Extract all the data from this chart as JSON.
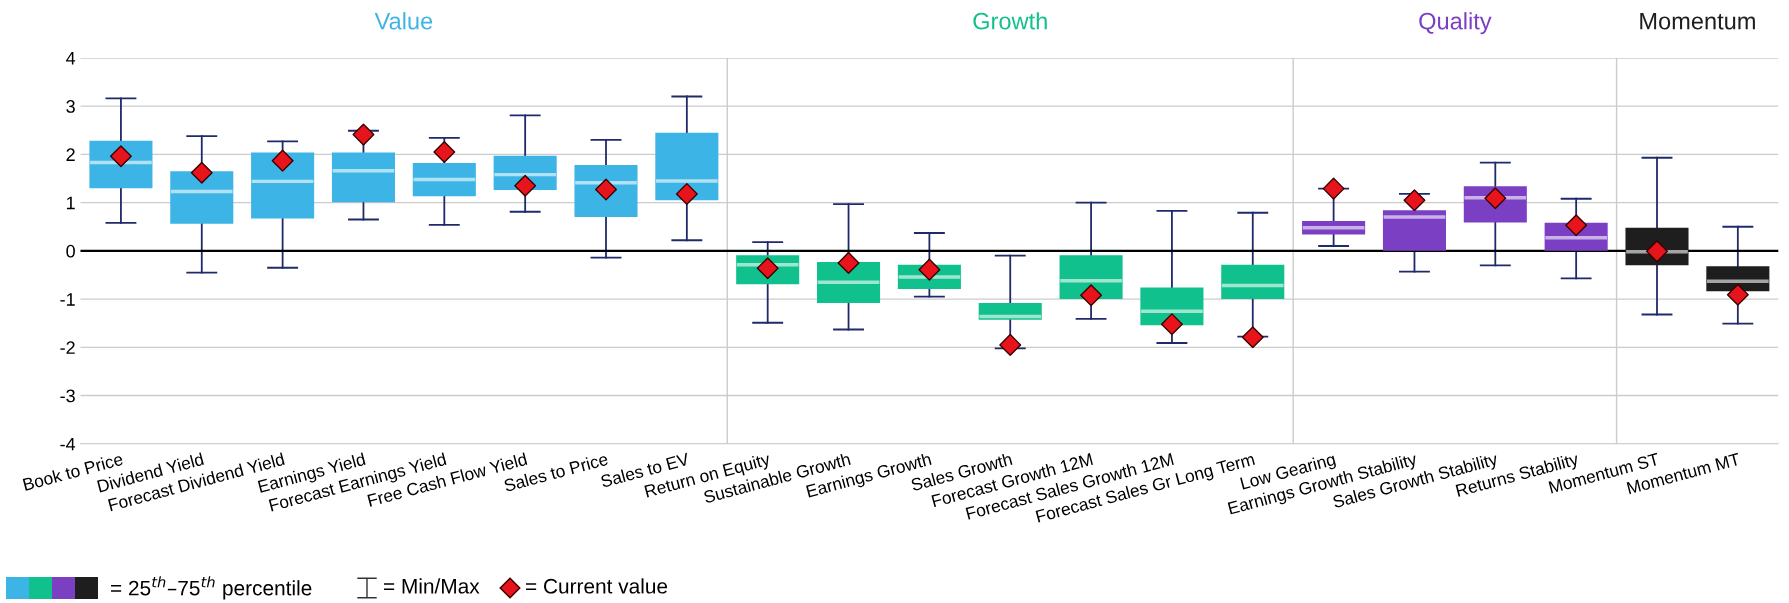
{
  "chart_data": {
    "type": "box",
    "categories": [
      "Book to Price",
      "Dividend Yield",
      "Forecast Dividend Yield",
      "Earnings Yield",
      "Forecast Earnings Yield",
      "Free Cash Flow Yield",
      "Sales to Price",
      "Sales to EV",
      "Return on Equity",
      "Sustainable Growth",
      "Earnings Growth",
      "Sales Growth",
      "Forecast Growth 12M",
      "Forecast Sales Growth 12M",
      "Forecast Sales Gr Long Term",
      "Low Gearing",
      "Earnings Growth Stability",
      "Sales Growth Stability",
      "Returns Stability",
      "Momentum ST",
      "Momentum MT"
    ],
    "series": [
      {
        "name": "Value",
        "color": "#3cb4e5",
        "boxes": [
          {
            "low": 0.58,
            "q1": 1.3,
            "median": 1.83,
            "q3": 2.28,
            "high": 3.16
          },
          {
            "low": -0.45,
            "q1": 0.56,
            "median": 1.23,
            "q3": 1.65,
            "high": 2.38
          },
          {
            "low": -0.35,
            "q1": 0.67,
            "median": 1.44,
            "q3": 2.04,
            "high": 2.27
          },
          {
            "low": 0.65,
            "q1": 1.01,
            "median": 1.66,
            "q3": 2.04,
            "high": 2.49
          },
          {
            "low": 0.54,
            "q1": 1.13,
            "median": 1.48,
            "q3": 1.82,
            "high": 2.34
          },
          {
            "low": 0.81,
            "q1": 1.26,
            "median": 1.58,
            "q3": 1.97,
            "high": 2.81
          },
          {
            "low": -0.14,
            "q1": 0.7,
            "median": 1.41,
            "q3": 1.78,
            "high": 2.3
          },
          {
            "low": 0.22,
            "q1": 1.05,
            "median": 1.45,
            "q3": 2.45,
            "high": 3.2
          },
          null,
          null,
          null,
          null,
          null,
          null,
          null,
          null,
          null,
          null,
          null,
          null,
          null
        ]
      },
      {
        "name": "Growth",
        "color": "#10c08d",
        "boxes": [
          null,
          null,
          null,
          null,
          null,
          null,
          null,
          null,
          {
            "low": -1.49,
            "q1": -0.69,
            "median": -0.29,
            "q3": -0.09,
            "high": 0.18
          },
          {
            "low": -1.63,
            "q1": -1.08,
            "median": -0.65,
            "q3": -0.23,
            "high": 0.97
          },
          {
            "low": -0.95,
            "q1": -0.79,
            "median": -0.54,
            "q3": -0.29,
            "high": 0.37
          },
          {
            "low": -2.02,
            "q1": -1.43,
            "median": -1.36,
            "q3": -1.08,
            "high": -0.1
          },
          {
            "low": -1.41,
            "q1": -1.0,
            "median": -0.62,
            "q3": -0.09,
            "high": 1.0
          },
          {
            "low": -1.91,
            "q1": -1.54,
            "median": -1.25,
            "q3": -0.76,
            "high": 0.83
          },
          {
            "low": -1.78,
            "q1": -1.0,
            "median": -0.72,
            "q3": -0.29,
            "high": 0.79
          },
          null,
          null,
          null,
          null,
          null,
          null
        ]
      },
      {
        "name": "Quality",
        "color": "#7b3fc4",
        "boxes": [
          null,
          null,
          null,
          null,
          null,
          null,
          null,
          null,
          null,
          null,
          null,
          null,
          null,
          null,
          null,
          {
            "low": 0.1,
            "q1": 0.34,
            "median": 0.48,
            "q3": 0.62,
            "high": 1.29
          },
          {
            "low": -0.43,
            "q1": 0.0,
            "median": 0.7,
            "q3": 0.84,
            "high": 1.18
          },
          {
            "low": -0.3,
            "q1": 0.59,
            "median": 1.1,
            "q3": 1.34,
            "high": 1.83
          },
          {
            "low": -0.57,
            "q1": 0.0,
            "median": 0.27,
            "q3": 0.58,
            "high": 1.08
          },
          null,
          null
        ]
      },
      {
        "name": "Momentum",
        "color": "#1e1e1e",
        "boxes": [
          null,
          null,
          null,
          null,
          null,
          null,
          null,
          null,
          null,
          null,
          null,
          null,
          null,
          null,
          null,
          null,
          null,
          null,
          null,
          {
            "low": -1.32,
            "q1": -0.3,
            "median": -0.02,
            "q3": 0.48,
            "high": 1.93
          },
          {
            "low": -1.51,
            "q1": -0.84,
            "median": -0.63,
            "q3": -0.32,
            "high": 0.5
          }
        ]
      },
      {
        "type": "scatter",
        "color": "#e8141b",
        "marker": "diamond",
        "values": [
          1.96,
          1.62,
          1.87,
          2.41,
          2.05,
          1.35,
          1.27,
          1.18,
          -0.36,
          -0.25,
          -0.39,
          -1.95,
          -0.92,
          -1.52,
          -1.79,
          1.29,
          1.05,
          1.09,
          0.53,
          -0.01,
          -0.91
        ]
      }
    ],
    "ylim": [
      -4,
      4
    ],
    "yticks": [
      -4,
      -3,
      -2,
      -1,
      0,
      1,
      2,
      3,
      4
    ],
    "grid": "y",
    "ref_lines": [
      {
        "axis": "y",
        "value": 0,
        "color": "#000000"
      }
    ],
    "annotations": [
      "= 25$^{th}$–75$^{th}$ percentile",
      "= Min/Max",
      "= Current value"
    ]
  }
}
